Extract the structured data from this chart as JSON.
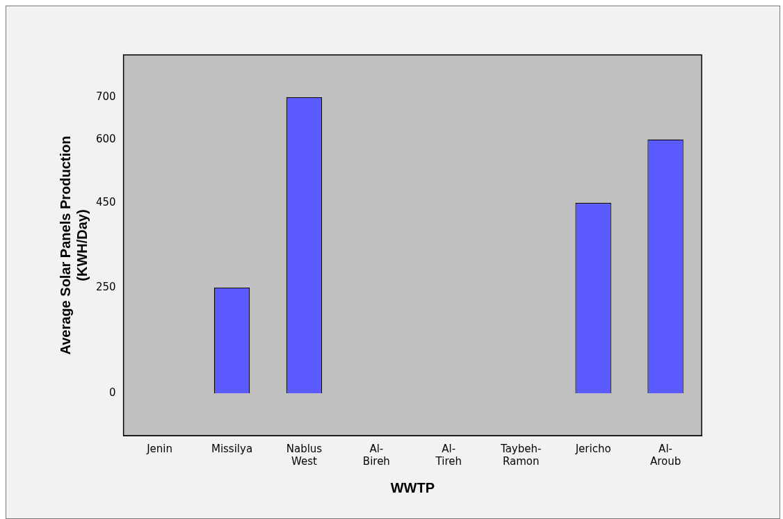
{
  "chart_data": {
    "type": "bar",
    "xlabel": "WWTP",
    "ylabel": "Average Solar Panels Production (KWH/Day)",
    "categories": [
      "Jenin",
      "Missilya",
      "Nablus West",
      "Al-Bireh",
      "Al-Tireh",
      "Taybeh-Ramon",
      "Jericho",
      "Al-Aroub"
    ],
    "values": [
      0,
      250,
      700,
      0,
      0,
      0,
      450,
      600
    ],
    "color": "#5b5bff",
    "ylim": [
      -100,
      800
    ],
    "yticks": [
      0,
      250,
      450,
      600,
      700
    ],
    "grid": false,
    "legend": false
  }
}
